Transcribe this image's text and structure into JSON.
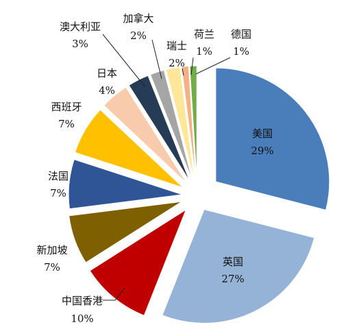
{
  "chart_data": {
    "type": "pie",
    "title": "",
    "exploded": true,
    "slices": [
      {
        "name": "美国",
        "value": 29,
        "label": "29%",
        "color": "#4A7EBB"
      },
      {
        "name": "英国",
        "value": 27,
        "label": "27%",
        "color": "#95B3D7"
      },
      {
        "name": "中国香港",
        "value": 10,
        "label": "10%",
        "color": "#C00000"
      },
      {
        "name": "新加坡",
        "value": 7,
        "label": "7%",
        "color": "#7F6000"
      },
      {
        "name": "法国",
        "value": 7,
        "label": "7%",
        "color": "#2F5597"
      },
      {
        "name": "西班牙",
        "value": 7,
        "label": "7%",
        "color": "#FFC000"
      },
      {
        "name": "日本",
        "value": 4,
        "label": "4%",
        "color": "#F8CBAD"
      },
      {
        "name": "澳大利亚",
        "value": 3,
        "label": "3%",
        "color": "#263B55"
      },
      {
        "name": "加拿大",
        "value": 2,
        "label": "2%",
        "color": "#A5A5A5"
      },
      {
        "name": "瑞士",
        "value": 2,
        "label": "2%",
        "color": "#FFE699"
      },
      {
        "name": "荷兰",
        "value": 1,
        "label": "1%",
        "color": "#F4B183"
      },
      {
        "name": "德国",
        "value": 1,
        "label": "1%",
        "color": "#70AD47"
      }
    ]
  }
}
